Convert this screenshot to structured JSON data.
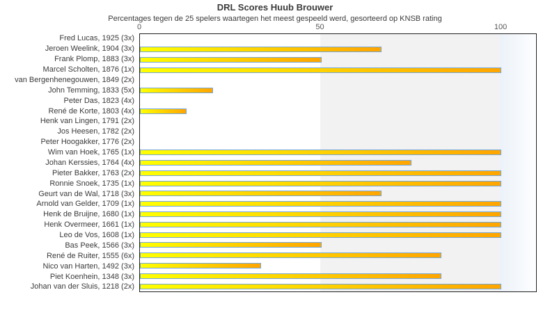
{
  "header": {
    "title": "DRL Scores Huub Brouwer",
    "subtitle": "Percentages tegen de 25 spelers waartegen het meest gespeeld werd, gesorteerd op KNSB rating"
  },
  "colors": {
    "bar_gradient_start": "#ffff00",
    "bar_gradient_end": "#ffa500",
    "bar_border": "#74a7d8",
    "band_50_100": "#f2f2f2",
    "band_over_100_start": "#ecf2f9",
    "band_over_100_end": "#fdfeff",
    "plot_border": "#1f1f1f"
  },
  "chart_data": {
    "type": "bar",
    "orientation": "horizontal",
    "title": "DRL Scores Huub Brouwer",
    "subtitle": "Percentages tegen de 25 spelers waartegen het meest gespeeld werd, gesorteerd op KNSB rating",
    "categories": [
      "Fred Lucas, 1925 (3x)",
      "Jeroen Weelink, 1904 (3x)",
      "Frank Plomp, 1883 (3x)",
      "Marcel Scholten, 1876 (1x)",
      "van Bergenhenegouwen, 1849 (2x)",
      "John Temming, 1833 (5x)",
      "Peter Das, 1823 (4x)",
      "René de Korte, 1803 (4x)",
      "Henk van Lingen, 1791 (2x)",
      "Jos Heesen, 1782 (2x)",
      "Peter Hoogakker, 1776 (2x)",
      "Wim van Hoek, 1765 (1x)",
      "Johan Kerssies, 1764 (4x)",
      "Pieter Bakker, 1763 (2x)",
      "Ronnie Snoek, 1735 (1x)",
      "Geurt van de Wal, 1718 (3x)",
      "Arnold van Gelder, 1709 (1x)",
      "Henk de Bruijne, 1680 (1x)",
      "Henk Overmeer, 1661 (1x)",
      "Leo de Vos, 1608 (1x)",
      "Bas Peek, 1566 (3x)",
      "René de Ruiter, 1555 (6x)",
      "Nico van Harten, 1492 (3x)",
      "Piet Koenhein, 1348 (3x)",
      "Johan van der Sluis, 1218 (2x)"
    ],
    "values": [
      0,
      66.7,
      50,
      100,
      0,
      20,
      0,
      12.5,
      0,
      0,
      0,
      100,
      75,
      100,
      100,
      66.7,
      100,
      100,
      100,
      100,
      50,
      83.3,
      33.3,
      83.3,
      100
    ],
    "xlabel": "",
    "ylabel": "",
    "xlim": [
      0,
      110
    ],
    "xticks": [
      0,
      50,
      100
    ],
    "grid": false,
    "legend": false,
    "shaded_band_x": [
      50,
      100
    ],
    "highlight_band_x": [
      100,
      110
    ]
  }
}
